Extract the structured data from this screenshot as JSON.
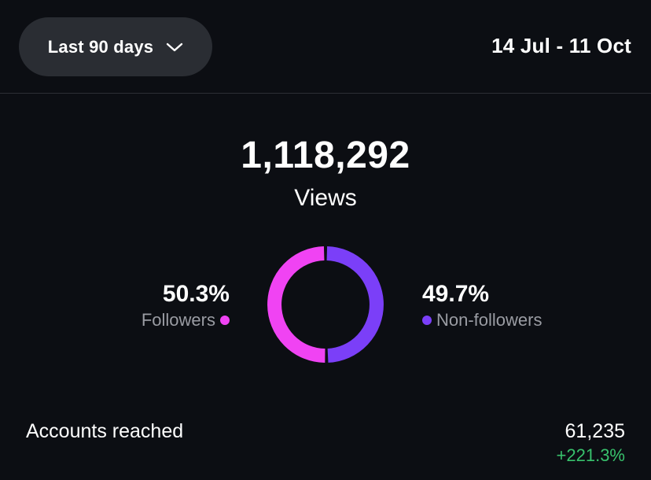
{
  "header": {
    "range_selector": {
      "label": "Last 90 days",
      "icon": "chevron-down-icon"
    },
    "date_range": "14 Jul - 11 Oct"
  },
  "views": {
    "total": "1,118,292",
    "label": "Views"
  },
  "breakdown": {
    "followers": {
      "percent_label": "50.3%",
      "label": "Followers",
      "fraction": 0.503,
      "color": "#f043f3"
    },
    "non_followers": {
      "percent_label": "49.7%",
      "label": "Non-followers",
      "fraction": 0.497,
      "color": "#7b3ff8"
    }
  },
  "metrics": {
    "accounts_reached": {
      "label": "Accounts reached",
      "value": "61,235",
      "change": "+221.3%"
    }
  },
  "colors": {
    "background": "#0c0e13",
    "pill": "#2a2d33",
    "positive_change": "#38c16c",
    "muted_text": "#9a9ca3"
  }
}
